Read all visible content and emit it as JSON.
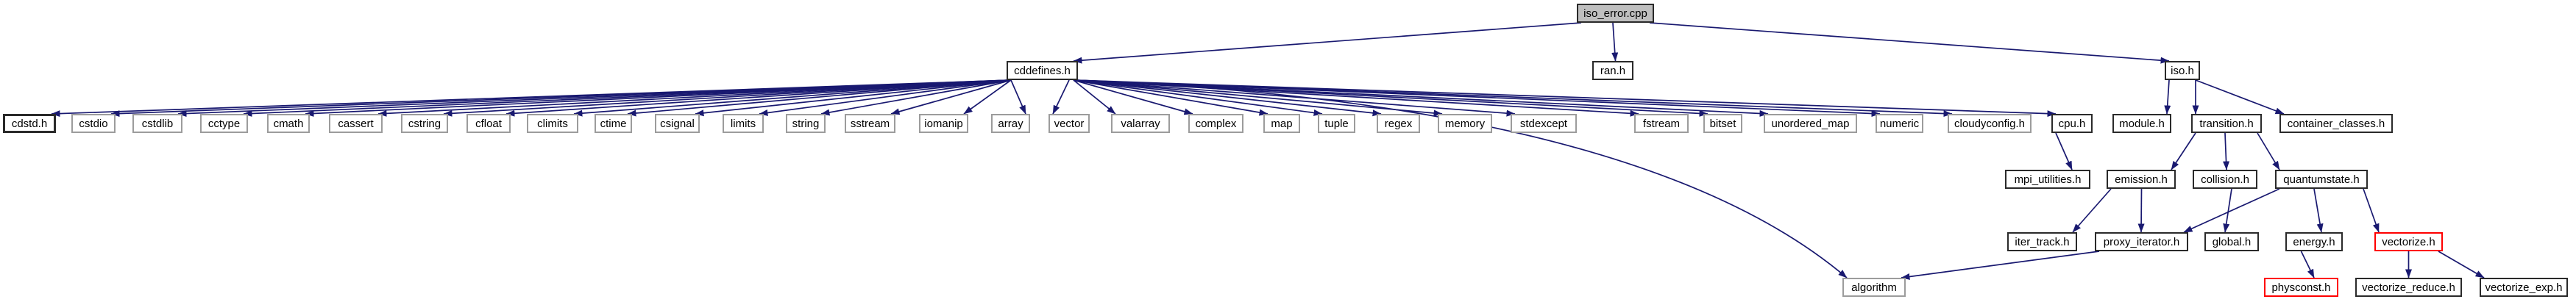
{
  "diagram": {
    "kind": "include-dependency-graph",
    "root_file": "iso_error.cpp",
    "colors": {
      "edge": "#191970",
      "plain_border": "#9c9c9c",
      "linked_border": "#2a2a2a",
      "truncated_border": "#ff0000",
      "root_fill": "#bfbfbf",
      "text": "#000000",
      "background": "#ffffff"
    },
    "nodes": [
      {
        "id": "iso_error_cpp",
        "label": "iso_error.cpp",
        "style": "root"
      },
      {
        "id": "ran_h",
        "label": "ran.h",
        "style": "linked"
      },
      {
        "id": "cddefines_h",
        "label": "cddefines.h",
        "style": "linked"
      },
      {
        "id": "iso_h",
        "label": "iso.h",
        "style": "linked"
      },
      {
        "id": "cdstd_h",
        "label": "cdstd.h",
        "style": "linked"
      },
      {
        "id": "cstdio",
        "label": "cstdio",
        "style": "plain"
      },
      {
        "id": "cstdlib",
        "label": "cstdlib",
        "style": "plain"
      },
      {
        "id": "cctype",
        "label": "cctype",
        "style": "plain"
      },
      {
        "id": "cmath",
        "label": "cmath",
        "style": "plain"
      },
      {
        "id": "cassert",
        "label": "cassert",
        "style": "plain"
      },
      {
        "id": "cstring",
        "label": "cstring",
        "style": "plain"
      },
      {
        "id": "cfloat",
        "label": "cfloat",
        "style": "plain"
      },
      {
        "id": "climits",
        "label": "climits",
        "style": "plain"
      },
      {
        "id": "ctime",
        "label": "ctime",
        "style": "plain"
      },
      {
        "id": "csignal",
        "label": "csignal",
        "style": "plain"
      },
      {
        "id": "limits",
        "label": "limits",
        "style": "plain"
      },
      {
        "id": "string",
        "label": "string",
        "style": "plain"
      },
      {
        "id": "sstream",
        "label": "sstream",
        "style": "plain"
      },
      {
        "id": "iomanip",
        "label": "iomanip",
        "style": "plain"
      },
      {
        "id": "array",
        "label": "array",
        "style": "plain"
      },
      {
        "id": "vector",
        "label": "vector",
        "style": "plain"
      },
      {
        "id": "valarray",
        "label": "valarray",
        "style": "plain"
      },
      {
        "id": "complex",
        "label": "complex",
        "style": "plain"
      },
      {
        "id": "map",
        "label": "map",
        "style": "plain"
      },
      {
        "id": "tuple",
        "label": "tuple",
        "style": "plain"
      },
      {
        "id": "regex",
        "label": "regex",
        "style": "plain"
      },
      {
        "id": "memory",
        "label": "memory",
        "style": "plain"
      },
      {
        "id": "stdexcept",
        "label": "stdexcept",
        "style": "plain"
      },
      {
        "id": "fstream",
        "label": "fstream",
        "style": "plain"
      },
      {
        "id": "bitset",
        "label": "bitset",
        "style": "plain"
      },
      {
        "id": "unordered_map",
        "label": "unordered_map",
        "style": "plain"
      },
      {
        "id": "numeric",
        "label": "numeric",
        "style": "plain"
      },
      {
        "id": "cloudyconfig_h",
        "label": "cloudyconfig.h",
        "style": "plain"
      },
      {
        "id": "cpu_h",
        "label": "cpu.h",
        "style": "linked"
      },
      {
        "id": "module_h",
        "label": "module.h",
        "style": "linked"
      },
      {
        "id": "transition_h",
        "label": "transition.h",
        "style": "linked"
      },
      {
        "id": "container_classes_h",
        "label": "container_classes.h",
        "style": "linked"
      },
      {
        "id": "mpi_utilities_h",
        "label": "mpi_utilities.h",
        "style": "linked"
      },
      {
        "id": "emission_h",
        "label": "emission.h",
        "style": "linked"
      },
      {
        "id": "collision_h",
        "label": "collision.h",
        "style": "linked"
      },
      {
        "id": "quantumstate_h",
        "label": "quantumstate.h",
        "style": "linked"
      },
      {
        "id": "iter_track_h",
        "label": "iter_track.h",
        "style": "linked"
      },
      {
        "id": "proxy_iterator_h",
        "label": "proxy_iterator.h",
        "style": "linked"
      },
      {
        "id": "global_h",
        "label": "global.h",
        "style": "linked"
      },
      {
        "id": "energy_h",
        "label": "energy.h",
        "style": "linked"
      },
      {
        "id": "vectorize_h",
        "label": "vectorize.h",
        "style": "truncated"
      },
      {
        "id": "algorithm",
        "label": "algorithm",
        "style": "plain"
      },
      {
        "id": "physconst_h",
        "label": "physconst.h",
        "style": "truncated"
      },
      {
        "id": "vectorize_reduce_h",
        "label": "vectorize_reduce.h",
        "style": "linked"
      },
      {
        "id": "vectorize_exp_h",
        "label": "vectorize_exp.h",
        "style": "linked"
      }
    ],
    "edges": [
      {
        "from": "iso_error_cpp",
        "to": "cddefines_h"
      },
      {
        "from": "iso_error_cpp",
        "to": "ran_h"
      },
      {
        "from": "iso_error_cpp",
        "to": "iso_h"
      },
      {
        "from": "cddefines_h",
        "to": "cdstd_h"
      },
      {
        "from": "cddefines_h",
        "to": "cstdio"
      },
      {
        "from": "cddefines_h",
        "to": "cstdlib"
      },
      {
        "from": "cddefines_h",
        "to": "cctype"
      },
      {
        "from": "cddefines_h",
        "to": "cmath"
      },
      {
        "from": "cddefines_h",
        "to": "cassert"
      },
      {
        "from": "cddefines_h",
        "to": "cstring"
      },
      {
        "from": "cddefines_h",
        "to": "cfloat"
      },
      {
        "from": "cddefines_h",
        "to": "climits"
      },
      {
        "from": "cddefines_h",
        "to": "ctime"
      },
      {
        "from": "cddefines_h",
        "to": "csignal"
      },
      {
        "from": "cddefines_h",
        "to": "limits"
      },
      {
        "from": "cddefines_h",
        "to": "string"
      },
      {
        "from": "cddefines_h",
        "to": "sstream"
      },
      {
        "from": "cddefines_h",
        "to": "iomanip"
      },
      {
        "from": "cddefines_h",
        "to": "array"
      },
      {
        "from": "cddefines_h",
        "to": "vector"
      },
      {
        "from": "cddefines_h",
        "to": "valarray"
      },
      {
        "from": "cddefines_h",
        "to": "complex"
      },
      {
        "from": "cddefines_h",
        "to": "map"
      },
      {
        "from": "cddefines_h",
        "to": "tuple"
      },
      {
        "from": "cddefines_h",
        "to": "regex"
      },
      {
        "from": "cddefines_h",
        "to": "memory"
      },
      {
        "from": "cddefines_h",
        "to": "stdexcept"
      },
      {
        "from": "cddefines_h",
        "to": "fstream"
      },
      {
        "from": "cddefines_h",
        "to": "bitset"
      },
      {
        "from": "cddefines_h",
        "to": "unordered_map"
      },
      {
        "from": "cddefines_h",
        "to": "numeric"
      },
      {
        "from": "cddefines_h",
        "to": "cloudyconfig_h"
      },
      {
        "from": "cddefines_h",
        "to": "cpu_h"
      },
      {
        "from": "cddefines_h",
        "to": "algorithm"
      },
      {
        "from": "iso_h",
        "to": "module_h"
      },
      {
        "from": "iso_h",
        "to": "transition_h"
      },
      {
        "from": "iso_h",
        "to": "container_classes_h"
      },
      {
        "from": "cpu_h",
        "to": "mpi_utilities_h"
      },
      {
        "from": "transition_h",
        "to": "emission_h"
      },
      {
        "from": "transition_h",
        "to": "collision_h"
      },
      {
        "from": "transition_h",
        "to": "quantumstate_h"
      },
      {
        "from": "emission_h",
        "to": "iter_track_h"
      },
      {
        "from": "emission_h",
        "to": "proxy_iterator_h"
      },
      {
        "from": "collision_h",
        "to": "global_h"
      },
      {
        "from": "quantumstate_h",
        "to": "proxy_iterator_h"
      },
      {
        "from": "quantumstate_h",
        "to": "energy_h"
      },
      {
        "from": "quantumstate_h",
        "to": "vectorize_h"
      },
      {
        "from": "proxy_iterator_h",
        "to": "algorithm"
      },
      {
        "from": "energy_h",
        "to": "physconst_h"
      },
      {
        "from": "vectorize_h",
        "to": "vectorize_reduce_h"
      },
      {
        "from": "vectorize_h",
        "to": "vectorize_exp_h"
      }
    ]
  }
}
